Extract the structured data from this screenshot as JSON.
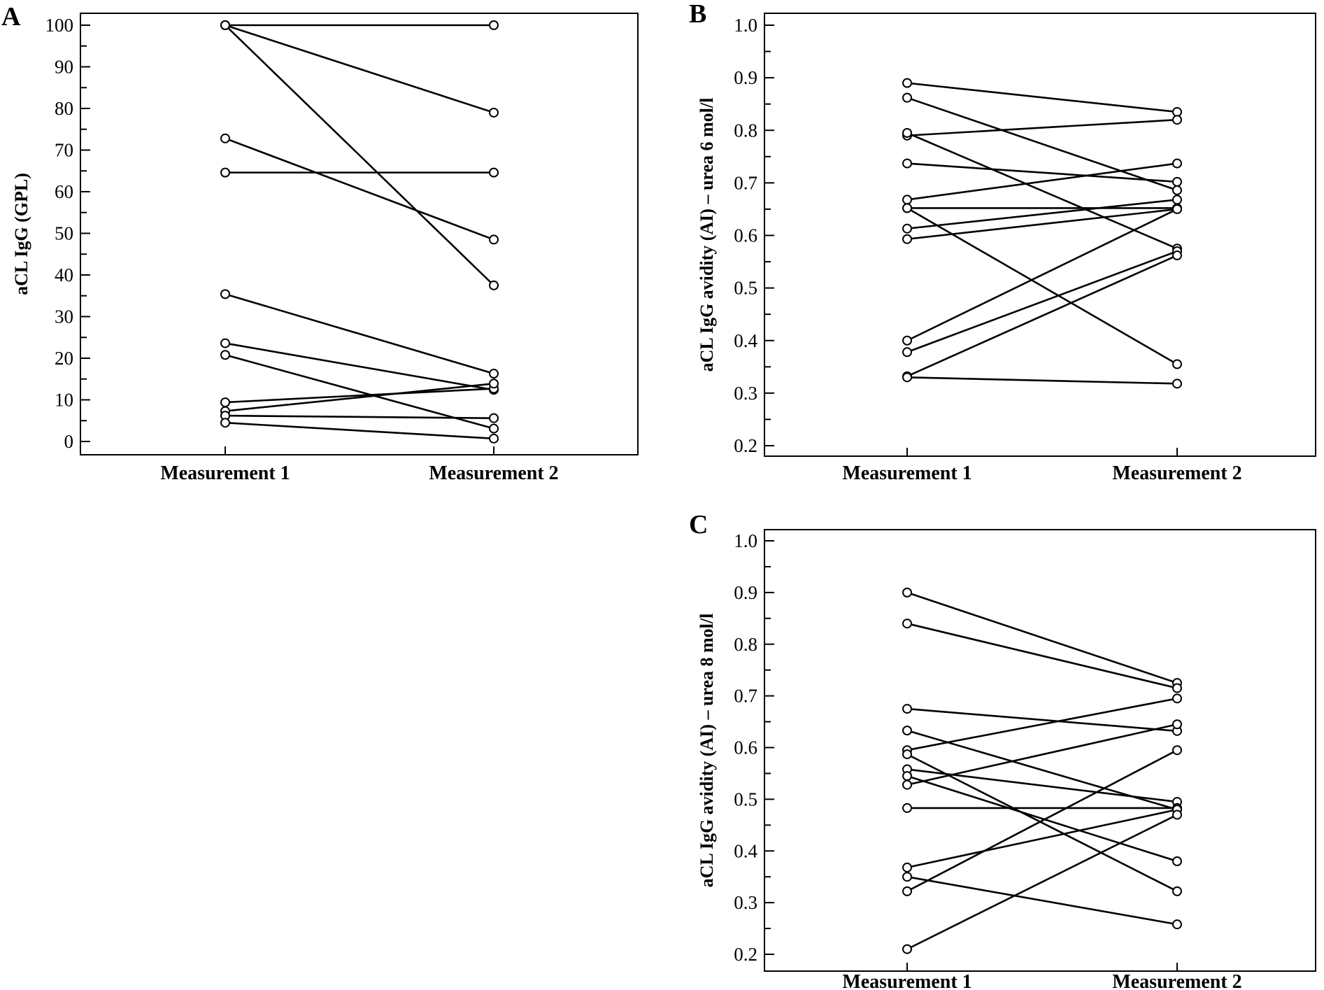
{
  "chart_data": [
    {
      "panel": "A",
      "type": "line",
      "ylabel": "aCL IgG (GPL)",
      "categories": [
        "Measurement 1",
        "Measurement 2"
      ],
      "ylim": [
        0,
        100
      ],
      "yticks": [
        0,
        10,
        20,
        30,
        40,
        50,
        60,
        70,
        80,
        90,
        100
      ],
      "ytick_labels": [
        "0",
        "10",
        "20",
        "30",
        "40",
        "50",
        "60",
        "70",
        "80",
        "90",
        "100"
      ],
      "pairs": [
        [
          100,
          100
        ],
        [
          100,
          79
        ],
        [
          100,
          37.5
        ],
        [
          72.8,
          48.5
        ],
        [
          64.6,
          64.6
        ],
        [
          35.4,
          16.3
        ],
        [
          23.6,
          12.4
        ],
        [
          20.8,
          3.1
        ],
        [
          9.4,
          12.7
        ],
        [
          7.3,
          13.9
        ],
        [
          6.2,
          5.6
        ],
        [
          4.5,
          0.7
        ]
      ]
    },
    {
      "panel": "B",
      "type": "line",
      "ylabel": "aCL IgG avidity (AI) – urea 6 mol/l",
      "categories": [
        "Measurement 1",
        "Measurement 2"
      ],
      "ylim": [
        0.2,
        1.0
      ],
      "yticks": [
        0.2,
        0.3,
        0.4,
        0.5,
        0.6,
        0.7,
        0.8,
        0.9,
        1.0
      ],
      "ytick_labels": [
        "0.2",
        "0.3",
        "0.4",
        "0.5",
        "0.6",
        "0.7",
        "0.8",
        "0.9",
        "1.0"
      ],
      "pairs": [
        [
          0.89,
          0.835
        ],
        [
          0.862,
          0.686
        ],
        [
          0.79,
          0.82
        ],
        [
          0.795,
          0.575
        ],
        [
          0.737,
          0.702
        ],
        [
          0.668,
          0.737
        ],
        [
          0.652,
          0.652
        ],
        [
          0.652,
          0.355
        ],
        [
          0.613,
          0.668
        ],
        [
          0.593,
          0.65
        ],
        [
          0.4,
          0.65
        ],
        [
          0.378,
          0.57
        ],
        [
          0.332,
          0.562
        ],
        [
          0.33,
          0.318
        ]
      ]
    },
    {
      "panel": "C",
      "type": "line",
      "ylabel": "aCL IgG avidity (AI) – urea 8 mol/l",
      "categories": [
        "Measurement 1",
        "Measurement 2"
      ],
      "ylim": [
        0.2,
        1.0
      ],
      "yticks": [
        0.2,
        0.3,
        0.4,
        0.5,
        0.6,
        0.7,
        0.8,
        0.9,
        1.0
      ],
      "ytick_labels": [
        "0.2",
        "0.3",
        "0.4",
        "0.5",
        "0.6",
        "0.7",
        "0.8",
        "0.9",
        "1.0"
      ],
      "pairs": [
        [
          0.9,
          0.725
        ],
        [
          0.84,
          0.715
        ],
        [
          0.675,
          0.632
        ],
        [
          0.633,
          0.48
        ],
        [
          0.595,
          0.695
        ],
        [
          0.587,
          0.322
        ],
        [
          0.558,
          0.495
        ],
        [
          0.545,
          0.38
        ],
        [
          0.528,
          0.645
        ],
        [
          0.483,
          0.483
        ],
        [
          0.368,
          0.48
        ],
        [
          0.35,
          0.258
        ],
        [
          0.322,
          0.595
        ],
        [
          0.21,
          0.47
        ]
      ]
    }
  ]
}
